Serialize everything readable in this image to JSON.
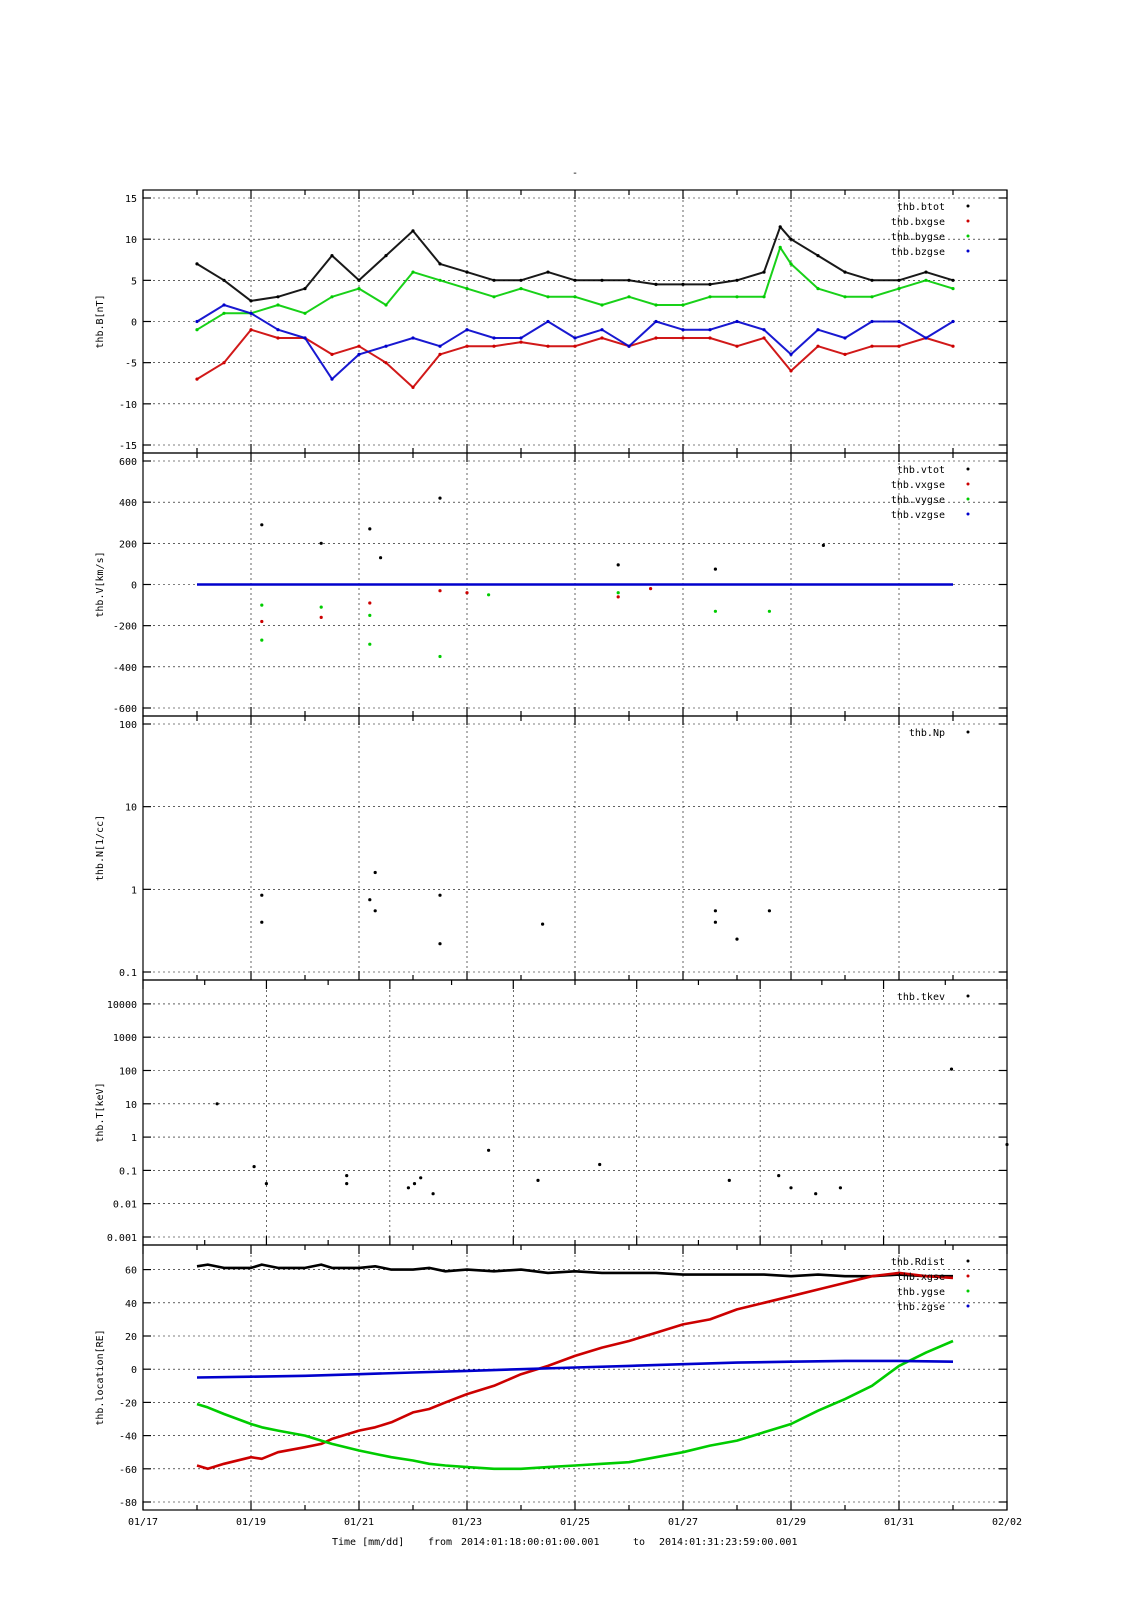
{
  "figure": {
    "title_mark": "-",
    "xlabel": "Time [mm/dd]",
    "range_from_label": "from",
    "range_from": "2014:01:18:00:01:00.001",
    "range_to_label": "to",
    "range_to": "2014:01:31:23:59:00.001",
    "x_tick_labels": [
      "01/17",
      "01/19",
      "01/21",
      "01/23",
      "01/25",
      "01/27",
      "01/29",
      "01/31",
      "02/02"
    ]
  },
  "chart_data": [
    {
      "type": "scatter",
      "ylabel": "thb.B[nT]",
      "ylim": [
        -15,
        15
      ],
      "yscale": "linear",
      "y_ticks": [
        -15,
        -10,
        -5,
        0,
        5,
        10,
        15
      ],
      "x_unit": "days since 2014-01-17",
      "xlim": [
        0,
        16
      ],
      "grid": true,
      "legend_position": "top-right",
      "series": [
        {
          "name": "thb.btot",
          "color": "#000000",
          "x": [
            1,
            1.5,
            2,
            2.5,
            3,
            3.5,
            4,
            4.5,
            5,
            5.5,
            6,
            6.5,
            7,
            7.5,
            8,
            8.5,
            9,
            9.5,
            10,
            10.5,
            11,
            11.5,
            11.8,
            12,
            12.5,
            13,
            13.5,
            14,
            14.5,
            15
          ],
          "y": [
            7,
            5,
            2.5,
            3,
            4,
            8,
            5,
            8,
            11,
            7,
            6,
            5,
            5,
            6,
            5,
            5,
            5,
            4.5,
            4.5,
            4.5,
            5,
            6,
            11.5,
            10,
            8,
            6,
            5,
            5,
            6,
            5
          ]
        },
        {
          "name": "thb.bxgse",
          "color": "#cc0000",
          "x": [
            1,
            1.5,
            2,
            2.5,
            3,
            3.5,
            4,
            4.5,
            5,
            5.5,
            6,
            6.5,
            7,
            7.5,
            8,
            8.5,
            9,
            9.5,
            10,
            10.5,
            11,
            11.5,
            12,
            12.5,
            13,
            13.5,
            14,
            14.5,
            15
          ],
          "y": [
            -7,
            -5,
            -1,
            -2,
            -2,
            -4,
            -3,
            -5,
            -8,
            -4,
            -3,
            -3,
            -2.5,
            -3,
            -3,
            -2,
            -3,
            -2,
            -2,
            -2,
            -3,
            -2,
            -6,
            -3,
            -4,
            -3,
            -3,
            -2,
            -3
          ]
        },
        {
          "name": "thb.bygse",
          "color": "#00cc00",
          "x": [
            1,
            1.5,
            2,
            2.5,
            3,
            3.5,
            4,
            4.5,
            5,
            5.5,
            6,
            6.5,
            7,
            7.5,
            8,
            8.5,
            9,
            9.5,
            10,
            10.5,
            11,
            11.5,
            11.8,
            12,
            12.5,
            13,
            13.5,
            14,
            14.5,
            15
          ],
          "y": [
            -1,
            1,
            1,
            2,
            1,
            3,
            4,
            2,
            6,
            5,
            4,
            3,
            4,
            3,
            3,
            2,
            3,
            2,
            2,
            3,
            3,
            3,
            9,
            7,
            4,
            3,
            3,
            4,
            5,
            4
          ]
        },
        {
          "name": "thb.bzgse",
          "color": "#0000cc",
          "x": [
            1,
            1.5,
            2,
            2.5,
            3,
            3.5,
            4,
            4.5,
            5,
            5.5,
            6,
            6.5,
            7,
            7.5,
            8,
            8.5,
            9,
            9.5,
            10,
            10.5,
            11,
            11.5,
            12,
            12.5,
            13,
            13.5,
            14,
            14.5,
            15
          ],
          "y": [
            0,
            2,
            1,
            -1,
            -2,
            -7,
            -4,
            -3,
            -2,
            -3,
            -1,
            -2,
            -2,
            0,
            -2,
            -1,
            -3,
            0,
            -1,
            -1,
            0,
            -1,
            -4,
            -1,
            -2,
            0,
            0,
            -2,
            0
          ]
        }
      ]
    },
    {
      "type": "scatter",
      "ylabel": "thb.V[km/s]",
      "ylim": [
        -600,
        600
      ],
      "yscale": "linear",
      "y_ticks": [
        -600,
        -400,
        -200,
        0,
        200,
        400,
        600
      ],
      "xlim": [
        0,
        16
      ],
      "grid": true,
      "legend_position": "top-right",
      "series": [
        {
          "name": "thb.vtot",
          "color": "#000000",
          "x": [
            2.2,
            3.3,
            4.2,
            4.4,
            5.5,
            8.8,
            10.6,
            12.6
          ],
          "y": [
            290,
            200,
            270,
            130,
            420,
            95,
            75,
            190
          ]
        },
        {
          "name": "thb.vxgse",
          "color": "#cc0000",
          "x": [
            2.2,
            3.3,
            4.2,
            5.5,
            6.0,
            8.8,
            9.4
          ],
          "y": [
            -180,
            -160,
            -90,
            -30,
            -40,
            -60,
            -20
          ]
        },
        {
          "name": "thb.vygse",
          "color": "#00cc00",
          "x": [
            2.2,
            2.2,
            3.3,
            4.2,
            4.2,
            5.5,
            6.4,
            8.8,
            10.6,
            11.6
          ],
          "y": [
            -270,
            -100,
            -110,
            -290,
            -150,
            -350,
            -50,
            -40,
            -130,
            -130
          ]
        },
        {
          "name": "thb.vzgse",
          "color": "#0000cc",
          "x": [
            1,
            2,
            3,
            4,
            5,
            6,
            7,
            8,
            9,
            10,
            11,
            12,
            13,
            14,
            15
          ],
          "y": [
            0,
            0,
            0,
            0,
            0,
            0,
            0,
            0,
            0,
            0,
            0,
            0,
            0,
            0,
            0
          ]
        }
      ]
    },
    {
      "type": "scatter",
      "ylabel": "thb.N[1/cc]",
      "ylim": [
        0.1,
        100
      ],
      "yscale": "log",
      "y_ticks": [
        0.1,
        1,
        10,
        100
      ],
      "xlim": [
        0,
        16
      ],
      "grid": true,
      "legend_position": "top-right",
      "series": [
        {
          "name": "thb.Np",
          "color": "#000000",
          "x": [
            2.2,
            2.2,
            4.2,
            4.3,
            4.3,
            5.5,
            5.5,
            7.4,
            10.6,
            10.6,
            11.0,
            11.6
          ],
          "y": [
            0.85,
            0.4,
            0.75,
            1.6,
            0.55,
            0.85,
            0.22,
            0.38,
            0.55,
            0.4,
            0.25,
            0.55
          ]
        }
      ]
    },
    {
      "type": "scatter",
      "ylabel": "thb.T[keV]",
      "ylim": [
        0.001,
        30000
      ],
      "yscale": "log",
      "y_ticks": [
        0.001,
        0.01,
        0.1,
        1,
        10,
        100,
        1000,
        10000
      ],
      "xlim": [
        0,
        14
      ],
      "grid": true,
      "legend_position": "top-right",
      "series": [
        {
          "name": "thb.tkev",
          "color": "#000000",
          "x": [
            1.2,
            1.8,
            2.0,
            3.3,
            3.3,
            4.3,
            4.4,
            4.5,
            4.7,
            5.6,
            6.4,
            7.4,
            9.5,
            10.3,
            10.5,
            10.9,
            11.3,
            13.1,
            14.0
          ],
          "y": [
            10,
            0.13,
            0.04,
            0.07,
            0.04,
            0.03,
            0.04,
            0.06,
            0.02,
            0.4,
            0.05,
            0.15,
            0.05,
            0.07,
            0.03,
            0.02,
            0.03,
            110,
            0.6
          ]
        }
      ]
    },
    {
      "type": "line",
      "ylabel": "thb.location[RE]",
      "ylim": [
        -80,
        70
      ],
      "yscale": "linear",
      "y_ticks": [
        -80,
        -60,
        -40,
        -20,
        0,
        20,
        40,
        60
      ],
      "xlim": [
        0,
        16
      ],
      "grid": true,
      "legend_position": "top-right",
      "series": [
        {
          "name": "thb.Rdist",
          "color": "#000000",
          "x": [
            1,
            1.2,
            1.5,
            2,
            2.2,
            2.5,
            3,
            3.3,
            3.5,
            4,
            4.3,
            4.6,
            5,
            5.3,
            5.6,
            6,
            6.5,
            7,
            7.5,
            8,
            8.5,
            9,
            9.5,
            10,
            10.5,
            11,
            11.5,
            12,
            12.5,
            13,
            13.5,
            14,
            14.5,
            15
          ],
          "y": [
            62,
            63,
            61,
            61,
            63,
            61,
            61,
            63,
            61,
            61,
            62,
            60,
            60,
            61,
            59,
            60,
            59,
            60,
            58,
            59,
            58,
            58,
            58,
            57,
            57,
            57,
            57,
            56,
            57,
            56,
            56,
            57,
            56,
            56
          ]
        },
        {
          "name": "thb.xgse",
          "color": "#cc0000",
          "x": [
            1,
            1.2,
            1.5,
            2,
            2.2,
            2.5,
            3,
            3.3,
            3.5,
            4,
            4.3,
            4.6,
            5,
            5.3,
            5.6,
            6,
            6.5,
            7,
            7.5,
            8,
            8.5,
            9,
            9.5,
            10,
            10.5,
            11,
            11.5,
            12,
            12.5,
            13,
            13.5,
            14,
            14.5,
            15
          ],
          "y": [
            -58,
            -60,
            -57,
            -53,
            -54,
            -50,
            -47,
            -45,
            -42,
            -37,
            -35,
            -32,
            -26,
            -24,
            -20,
            -15,
            -10,
            -3,
            2,
            8,
            13,
            17,
            22,
            27,
            30,
            36,
            40,
            44,
            48,
            52,
            56,
            58,
            56,
            55
          ]
        },
        {
          "name": "thb.ygse",
          "color": "#00cc00",
          "x": [
            1,
            1.2,
            1.5,
            2,
            2.2,
            2.5,
            3,
            3.3,
            3.5,
            4,
            4.3,
            4.6,
            5,
            5.3,
            5.6,
            6,
            6.5,
            7,
            7.5,
            8,
            8.5,
            9,
            9.5,
            10,
            10.5,
            11,
            11.5,
            12,
            12.5,
            13,
            13.5,
            14,
            14.5,
            15
          ],
          "y": [
            -21,
            -23,
            -27,
            -33,
            -35,
            -37,
            -40,
            -43,
            -45,
            -49,
            -51,
            -53,
            -55,
            -57,
            -58,
            -59,
            -60,
            -60,
            -59,
            -58,
            -57,
            -56,
            -53,
            -50,
            -46,
            -43,
            -38,
            -33,
            -25,
            -18,
            -10,
            2,
            10,
            17
          ]
        },
        {
          "name": "thb.zgse",
          "color": "#0000cc",
          "x": [
            1,
            2,
            3,
            4,
            5,
            6,
            7,
            8,
            9,
            10,
            11,
            12,
            13,
            14,
            15
          ],
          "y": [
            -5,
            -4.5,
            -4,
            -3,
            -2,
            -1,
            0,
            1,
            2,
            3,
            4,
            4.5,
            5,
            5,
            4.5
          ]
        }
      ]
    }
  ]
}
